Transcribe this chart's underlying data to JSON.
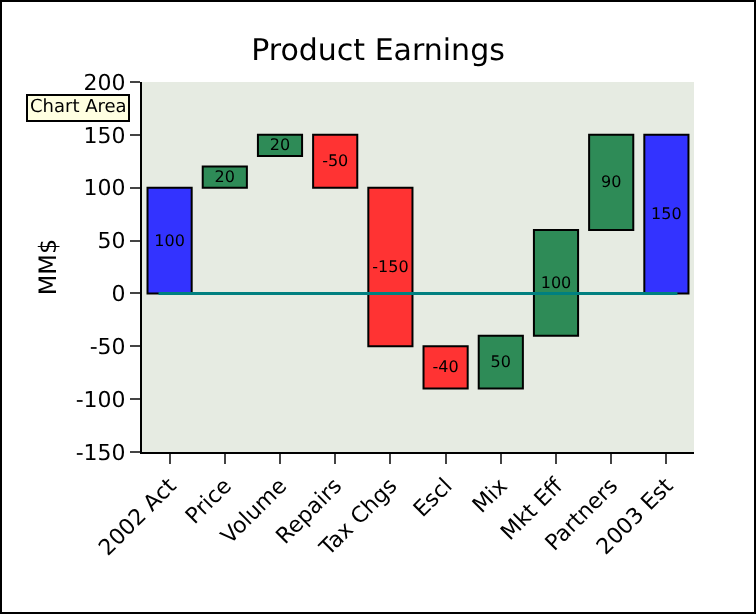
{
  "chart_data": {
    "type": "bar",
    "title": "Product Earnings",
    "ylabel": "MM$",
    "categories": [
      "2002 Act",
      "Price",
      "Volume",
      "Repairs",
      "Tax Chgs",
      "Escl",
      "Mix",
      "Mkt Eff",
      "Partners",
      "2003 Est"
    ],
    "values": [
      100,
      20,
      20,
      -50,
      -150,
      -40,
      50,
      100,
      90,
      150
    ],
    "base": [
      0,
      100,
      130,
      150,
      100,
      -50,
      -90,
      -40,
      60,
      0
    ],
    "colors": [
      "#3333ff",
      "#2e8b57",
      "#2e8b57",
      "#ff3333",
      "#ff3333",
      "#ff3333",
      "#2e8b57",
      "#2e8b57",
      "#2e8b57",
      "#3333ff"
    ],
    "data_labels": true,
    "ylim": [
      -150,
      200
    ],
    "yticks": [
      -150,
      -100,
      -50,
      0,
      50,
      100,
      150,
      200
    ],
    "grid": false,
    "ref_lines": [
      {
        "axis": "y",
        "value": 0,
        "color": "#008080"
      }
    ],
    "annotations": [
      "Chart Area"
    ]
  }
}
